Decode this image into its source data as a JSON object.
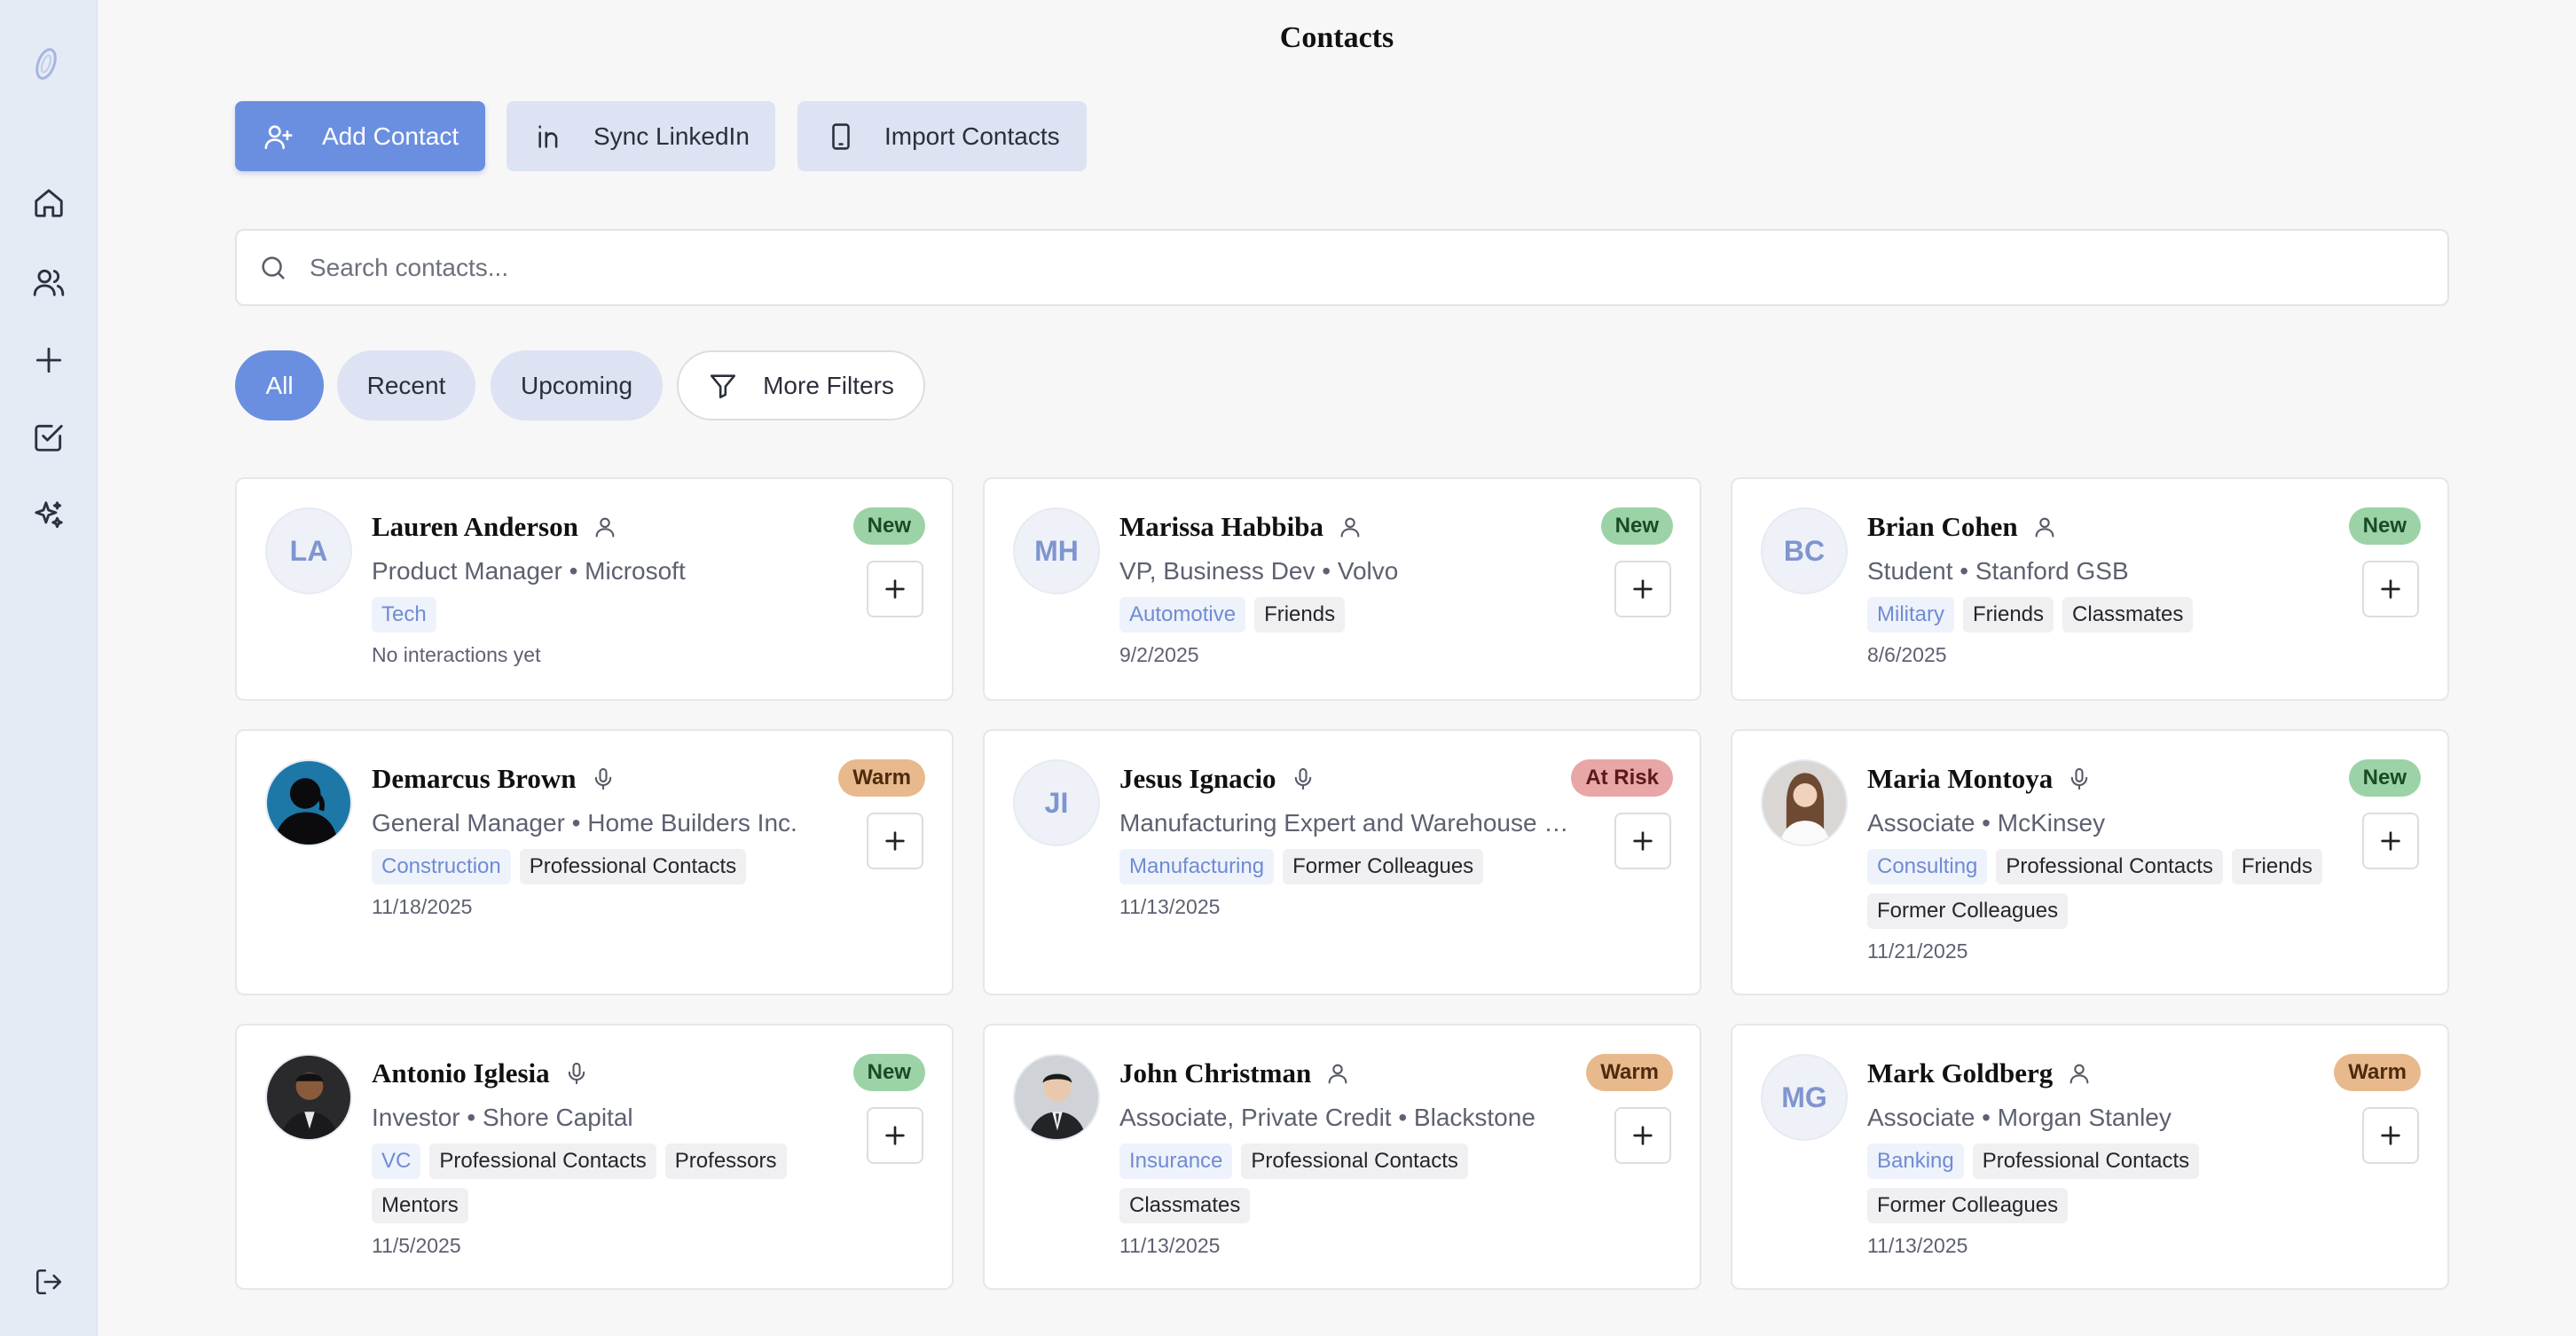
{
  "page": {
    "title": "Contacts"
  },
  "sidebar": {
    "items": [
      {
        "name": "home-icon"
      },
      {
        "name": "contacts-icon"
      },
      {
        "name": "add-icon"
      },
      {
        "name": "tasks-icon"
      },
      {
        "name": "sparkle-icon"
      }
    ],
    "logout": "logout-icon"
  },
  "actions": {
    "add_contact": "Add Contact",
    "sync_linkedin": "Sync LinkedIn",
    "import_contacts": "Import Contacts"
  },
  "search": {
    "placeholder": "Search contacts...",
    "value": ""
  },
  "filters": {
    "all": "All",
    "recent": "Recent",
    "upcoming": "Upcoming",
    "more": "More Filters",
    "selected": "All"
  },
  "contacts": [
    {
      "initials": "LA",
      "name": "Lauren Anderson",
      "source": "person",
      "subtitle": "Product Manager • Microsoft",
      "industry": "Tech",
      "tags": [],
      "date": "No interactions yet",
      "status": "New"
    },
    {
      "initials": "MH",
      "name": "Marissa Habbiba",
      "source": "person",
      "subtitle": "VP, Business Dev • Volvo",
      "industry": "Automotive",
      "tags": [
        "Friends"
      ],
      "date": "9/2/2025",
      "status": "New"
    },
    {
      "initials": "BC",
      "name": "Brian Cohen",
      "source": "person",
      "subtitle": "Student • Stanford GSB",
      "industry": "Military",
      "tags": [
        "Friends",
        "Classmates"
      ],
      "date": "8/6/2025",
      "status": "New"
    },
    {
      "initials": "",
      "name": "Demarcus Brown",
      "source": "mic",
      "subtitle": "General Manager • Home Builders Inc.",
      "industry": "Construction",
      "tags": [
        "Professional Contacts"
      ],
      "date": "11/18/2025",
      "status": "Warm"
    },
    {
      "initials": "JI",
      "name": "Jesus Ignacio",
      "source": "mic",
      "subtitle": "Manufacturing Expert and Warehouse Specialist",
      "industry": "Manufacturing",
      "tags": [
        "Former Colleagues"
      ],
      "date": "11/13/2025",
      "status": "At Risk"
    },
    {
      "initials": "",
      "name": "Maria Montoya",
      "source": "mic",
      "subtitle": "Associate • McKinsey",
      "industry": "Consulting",
      "tags": [
        "Professional Contacts",
        "Friends",
        "Former Colleagues"
      ],
      "date": "11/21/2025",
      "status": "New"
    },
    {
      "initials": "",
      "name": "Antonio Iglesia",
      "source": "mic",
      "subtitle": "Investor • Shore Capital",
      "industry": "VC",
      "tags": [
        "Professional Contacts",
        "Professors",
        "Mentors"
      ],
      "date": "11/5/2025",
      "status": "New"
    },
    {
      "initials": "",
      "name": "John Christman",
      "source": "person",
      "subtitle": "Associate, Private Credit • Blackstone",
      "industry": "Insurance",
      "tags": [
        "Professional Contacts",
        "Classmates"
      ],
      "date": "11/13/2025",
      "status": "Warm"
    },
    {
      "initials": "MG",
      "name": "Mark Goldberg",
      "source": "person",
      "subtitle": "Associate • Morgan Stanley",
      "industry": "Banking",
      "tags": [
        "Professional Contacts",
        "Former Colleagues"
      ],
      "date": "11/13/2025",
      "status": "Warm"
    }
  ]
}
